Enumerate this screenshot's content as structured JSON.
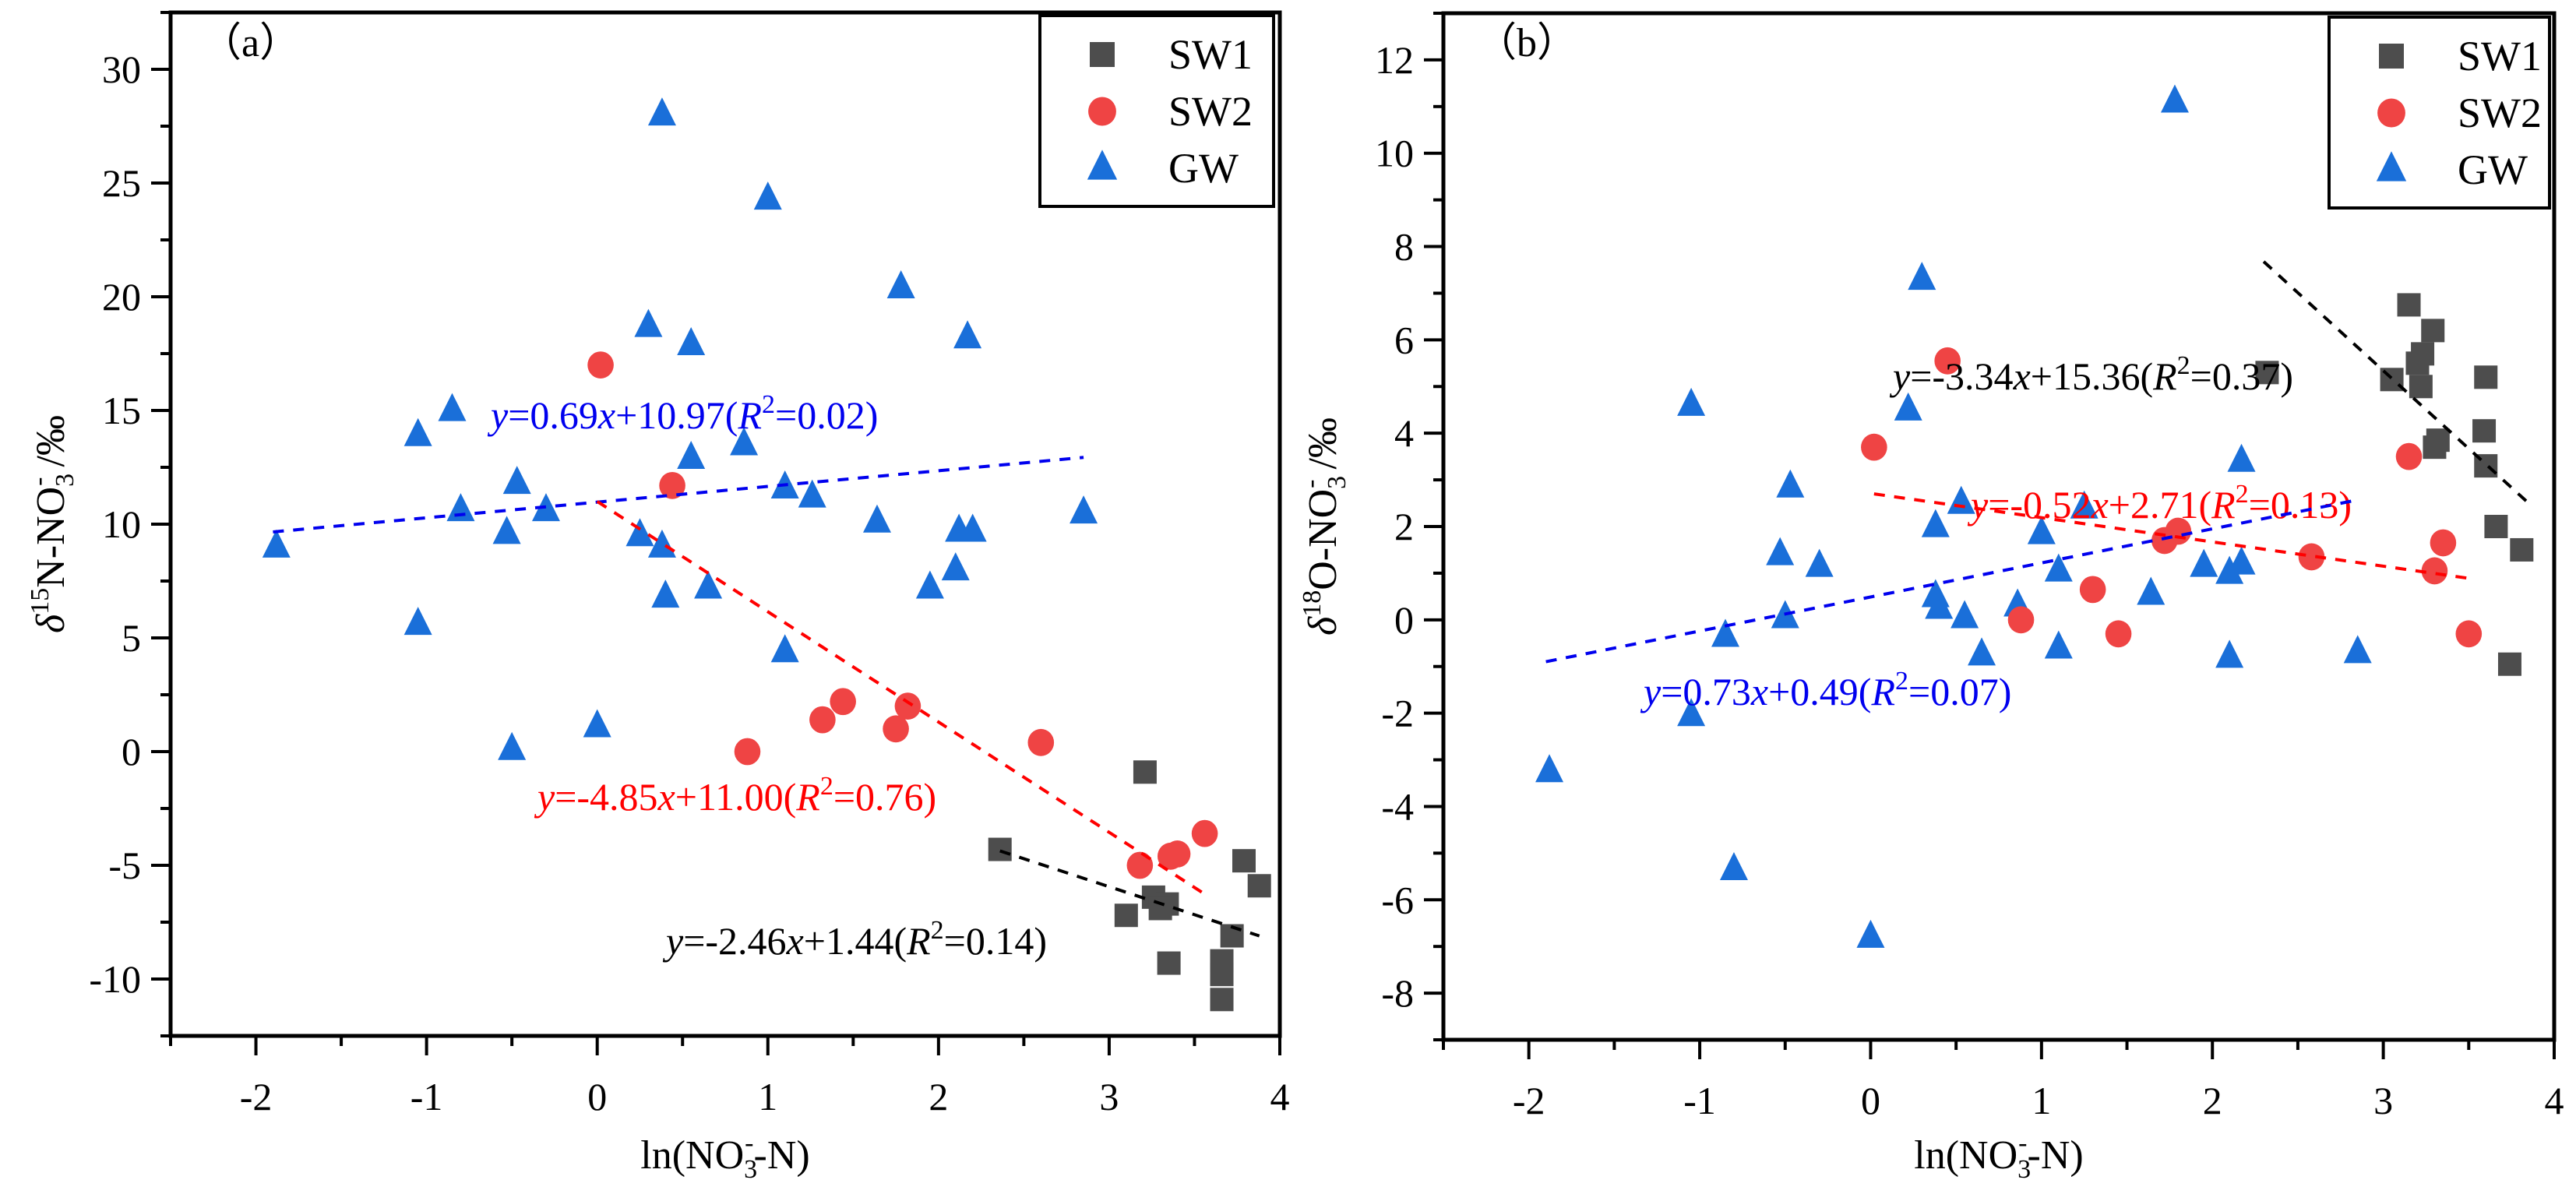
{
  "chart_data": [
    {
      "type": "scatter",
      "panel_label": "（a）",
      "xlabel": "ln(NO3⁻-N)",
      "xlabel_parts": {
        "pre": "ln(NO",
        "sub": "3",
        "sup": "-",
        "post": "-N)"
      },
      "ylabel": "δ15N-NO3⁻ /‰",
      "ylabel_parts": {
        "delta": "δ",
        "sup": "15",
        "mid": "N-NO",
        "sub": "3",
        "sup2": "-",
        "post": " /‰"
      },
      "xlim": [
        -2.5,
        4
      ],
      "ylim": [
        -12.5,
        32.5
      ],
      "xticks": [
        -2,
        -1,
        0,
        1,
        2,
        3,
        4
      ],
      "xtick_labels": [
        "-2",
        "-1",
        "0",
        "1",
        "2",
        "3",
        "4"
      ],
      "yticks": [
        -10,
        -5,
        0,
        5,
        10,
        15,
        20,
        25,
        30
      ],
      "ytick_labels": [
        "-10",
        "-5",
        "0",
        "5",
        "10",
        "15",
        "20",
        "25",
        "30"
      ],
      "grid": false,
      "legend_position": "top-right",
      "series": [
        {
          "name": "SW1",
          "marker": "square",
          "color": "#4d4d4d",
          "points": [
            [
              2.36,
              -4.3
            ],
            [
              3.21,
              -0.9
            ],
            [
              3.1,
              -7.2
            ],
            [
              3.26,
              -6.4
            ],
            [
              3.34,
              -6.7
            ],
            [
              3.35,
              -9.3
            ],
            [
              3.66,
              -9.2
            ],
            [
              3.72,
              -8.1
            ],
            [
              3.66,
              -10.9
            ],
            [
              3.66,
              -9.8
            ],
            [
              3.79,
              -4.8
            ],
            [
              3.88,
              -5.9
            ],
            [
              3.3,
              -6.9
            ]
          ]
        },
        {
          "name": "SW2",
          "marker": "circle",
          "color": "#ef4444",
          "points": [
            [
              0.02,
              17.0
            ],
            [
              0.44,
              11.7
            ],
            [
              0.88,
              0.0
            ],
            [
              1.32,
              1.4
            ],
            [
              1.44,
              2.2
            ],
            [
              1.75,
              1.0
            ],
            [
              1.82,
              2.0
            ],
            [
              2.6,
              0.4
            ],
            [
              3.18,
              -5.0
            ],
            [
              3.36,
              -4.6
            ],
            [
              3.4,
              -4.5
            ],
            [
              3.56,
              -3.6
            ]
          ]
        },
        {
          "name": "GW",
          "marker": "triangle",
          "color": "#1a6fd9",
          "points": [
            [
              0.38,
              28.0
            ],
            [
              1.0,
              24.3
            ],
            [
              1.78,
              20.4
            ],
            [
              0.3,
              18.7
            ],
            [
              0.55,
              17.9
            ],
            [
              2.17,
              18.2
            ],
            [
              -0.85,
              15.0
            ],
            [
              -1.05,
              13.9
            ],
            [
              0.86,
              13.5
            ],
            [
              0.55,
              12.9
            ],
            [
              -0.47,
              11.8
            ],
            [
              1.1,
              11.6
            ],
            [
              1.26,
              11.2
            ],
            [
              -0.8,
              10.6
            ],
            [
              -0.3,
              10.6
            ],
            [
              2.85,
              10.5
            ],
            [
              1.64,
              10.1
            ],
            [
              2.12,
              9.7
            ],
            [
              2.2,
              9.7
            ],
            [
              -0.53,
              9.6
            ],
            [
              0.25,
              9.5
            ],
            [
              0.38,
              9.0
            ],
            [
              -1.88,
              9.0
            ],
            [
              2.1,
              8.0
            ],
            [
              1.95,
              7.2
            ],
            [
              0.65,
              7.2
            ],
            [
              0.4,
              6.8
            ],
            [
              -1.05,
              5.6
            ],
            [
              1.1,
              4.4
            ],
            [
              0.0,
              1.1
            ],
            [
              -0.5,
              0.1
            ]
          ]
        }
      ],
      "fits": [
        {
          "series": "GW",
          "equation": "y=0.69x+10.97(R2=0.02)",
          "slope": 0.69,
          "intercept": 10.97,
          "r2": 0.02,
          "x_range": [
            -1.9,
            2.85
          ],
          "color": "#0000ee",
          "label_parts": [
            "y",
            "=0.69",
            "x",
            "+10.97(",
            "R",
            "2",
            "=0.02)"
          ]
        },
        {
          "series": "SW2",
          "equation": "y=-4.85x+11.00(R2=0.76)",
          "slope": -4.85,
          "intercept": 11.0,
          "r2": 0.76,
          "x_range": [
            0.0,
            3.56
          ],
          "color": "#ff0000",
          "label_parts": [
            "y",
            "=-4.85",
            "x",
            "+11.00(",
            "R",
            "2",
            "=0.76)"
          ]
        },
        {
          "series": "SW1",
          "equation": "y=-2.46x+1.44(R2=0.14)",
          "slope": -2.46,
          "intercept": 1.44,
          "r2": 0.14,
          "x_range": [
            2.36,
            3.88
          ],
          "color": "#000000",
          "label_parts": [
            "y",
            "=-2.46",
            "x",
            "+1.44(",
            "R",
            "2",
            "=0.14)"
          ]
        }
      ]
    },
    {
      "type": "scatter",
      "panel_label": "（b）",
      "xlabel": "ln(NO3⁻-N)",
      "xlabel_parts": {
        "pre": "ln(NO",
        "sub": "3",
        "sup": "-",
        "post": "-N)"
      },
      "ylabel": "δ18O-NO3⁻ /‰",
      "ylabel_parts": {
        "delta": "δ",
        "sup": "18",
        "mid": "O-NO",
        "sub": "3",
        "sup2": "-",
        "post": " /‰"
      },
      "xlim": [
        -2.5,
        4
      ],
      "ylim": [
        -9,
        13
      ],
      "xticks": [
        -2,
        -1,
        0,
        1,
        2,
        3,
        4
      ],
      "xtick_labels": [
        "-2",
        "-1",
        "0",
        "1",
        "2",
        "3",
        "4"
      ],
      "yticks": [
        -8,
        -6,
        -4,
        -2,
        0,
        2,
        4,
        6,
        8,
        10,
        12
      ],
      "ytick_labels": [
        "-8",
        "-6",
        "-4",
        "-2",
        "0",
        "2",
        "4",
        "6",
        "8",
        "10",
        "12"
      ],
      "grid": false,
      "legend_position": "top-right",
      "series": [
        {
          "name": "SW1",
          "marker": "square",
          "color": "#4d4d4d",
          "points": [
            [
              3.15,
              6.75
            ],
            [
              3.29,
              6.2
            ],
            [
              3.23,
              5.7
            ],
            [
              3.2,
              5.5
            ],
            [
              3.22,
              5.0
            ],
            [
              3.05,
              5.15
            ],
            [
              2.32,
              5.3
            ],
            [
              3.6,
              5.2
            ],
            [
              3.59,
              4.05
            ],
            [
              3.3,
              3.7
            ],
            [
              3.32,
              3.85
            ],
            [
              3.6,
              3.3
            ],
            [
              3.66,
              2.0
            ],
            [
              3.81,
              1.5
            ],
            [
              3.74,
              -0.95
            ]
          ]
        },
        {
          "name": "SW2",
          "marker": "circle",
          "color": "#ef4444",
          "points": [
            [
              0.45,
              5.55
            ],
            [
              0.02,
              3.7
            ],
            [
              3.15,
              3.5
            ],
            [
              3.35,
              1.65
            ],
            [
              1.72,
              1.7
            ],
            [
              1.8,
              1.9
            ],
            [
              2.58,
              1.35
            ],
            [
              3.3,
              1.05
            ],
            [
              1.3,
              0.65
            ],
            [
              0.88,
              0.0
            ],
            [
              1.45,
              -0.3
            ],
            [
              3.5,
              -0.3
            ]
          ]
        },
        {
          "name": "GW",
          "marker": "triangle",
          "color": "#1a6fd9",
          "points": [
            [
              1.78,
              11.1
            ],
            [
              0.3,
              7.3
            ],
            [
              0.22,
              4.5
            ],
            [
              -1.05,
              4.6
            ],
            [
              2.17,
              3.4
            ],
            [
              -0.47,
              2.85
            ],
            [
              0.53,
              2.5
            ],
            [
              1.25,
              2.4
            ],
            [
              0.38,
              2.0
            ],
            [
              1.0,
              1.85
            ],
            [
              -0.53,
              1.4
            ],
            [
              -0.3,
              1.15
            ],
            [
              1.1,
              1.05
            ],
            [
              1.95,
              1.15
            ],
            [
              2.17,
              1.2
            ],
            [
              2.1,
              1.0
            ],
            [
              0.38,
              0.5
            ],
            [
              0.86,
              0.3
            ],
            [
              1.64,
              0.55
            ],
            [
              0.4,
              0.25
            ],
            [
              -0.5,
              0.05
            ],
            [
              0.55,
              0.05
            ],
            [
              -0.85,
              -0.35
            ],
            [
              1.1,
              -0.6
            ],
            [
              0.65,
              -0.75
            ],
            [
              2.1,
              -0.8
            ],
            [
              2.85,
              -0.7
            ],
            [
              -1.05,
              -2.05
            ],
            [
              -1.88,
              -3.25
            ],
            [
              -0.8,
              -5.35
            ],
            [
              0.0,
              -6.8
            ]
          ]
        }
      ],
      "fits": [
        {
          "series": "SW1",
          "equation": "y=-3.34x+15.36(R2=0.37)",
          "slope": -3.34,
          "intercept": 15.36,
          "r2": 0.37,
          "x_range": [
            2.3,
            3.85
          ],
          "color": "#000000",
          "label_parts": [
            "y",
            "=-3.34",
            "x",
            "+15.36(",
            "R",
            "2",
            "=0.37)"
          ]
        },
        {
          "series": "SW2",
          "equation": "y=-0.52x+2.71(R2=0.13)",
          "slope": -0.52,
          "intercept": 2.71,
          "r2": 0.13,
          "x_range": [
            0.02,
            3.5
          ],
          "color": "#ff0000",
          "label_parts": [
            "y",
            "=-0.52",
            "x",
            "+2.71(",
            "R",
            "2",
            "=0.13)"
          ]
        },
        {
          "series": "GW",
          "equation": "y=0.73x+0.49(R2=0.07)",
          "slope": 0.73,
          "intercept": 0.49,
          "r2": 0.07,
          "x_range": [
            -1.9,
            2.85
          ],
          "color": "#0000ee",
          "label_parts": [
            "y",
            "=0.73",
            "x",
            "+0.49(",
            "R",
            "2",
            "=0.07)"
          ]
        }
      ]
    }
  ],
  "legend": {
    "items": [
      {
        "label": "SW1",
        "marker": "square",
        "color": "#4d4d4d"
      },
      {
        "label": "SW2",
        "marker": "circle",
        "color": "#ef4444"
      },
      {
        "label": "GW",
        "marker": "triangle",
        "color": "#1a6fd9"
      }
    ]
  }
}
